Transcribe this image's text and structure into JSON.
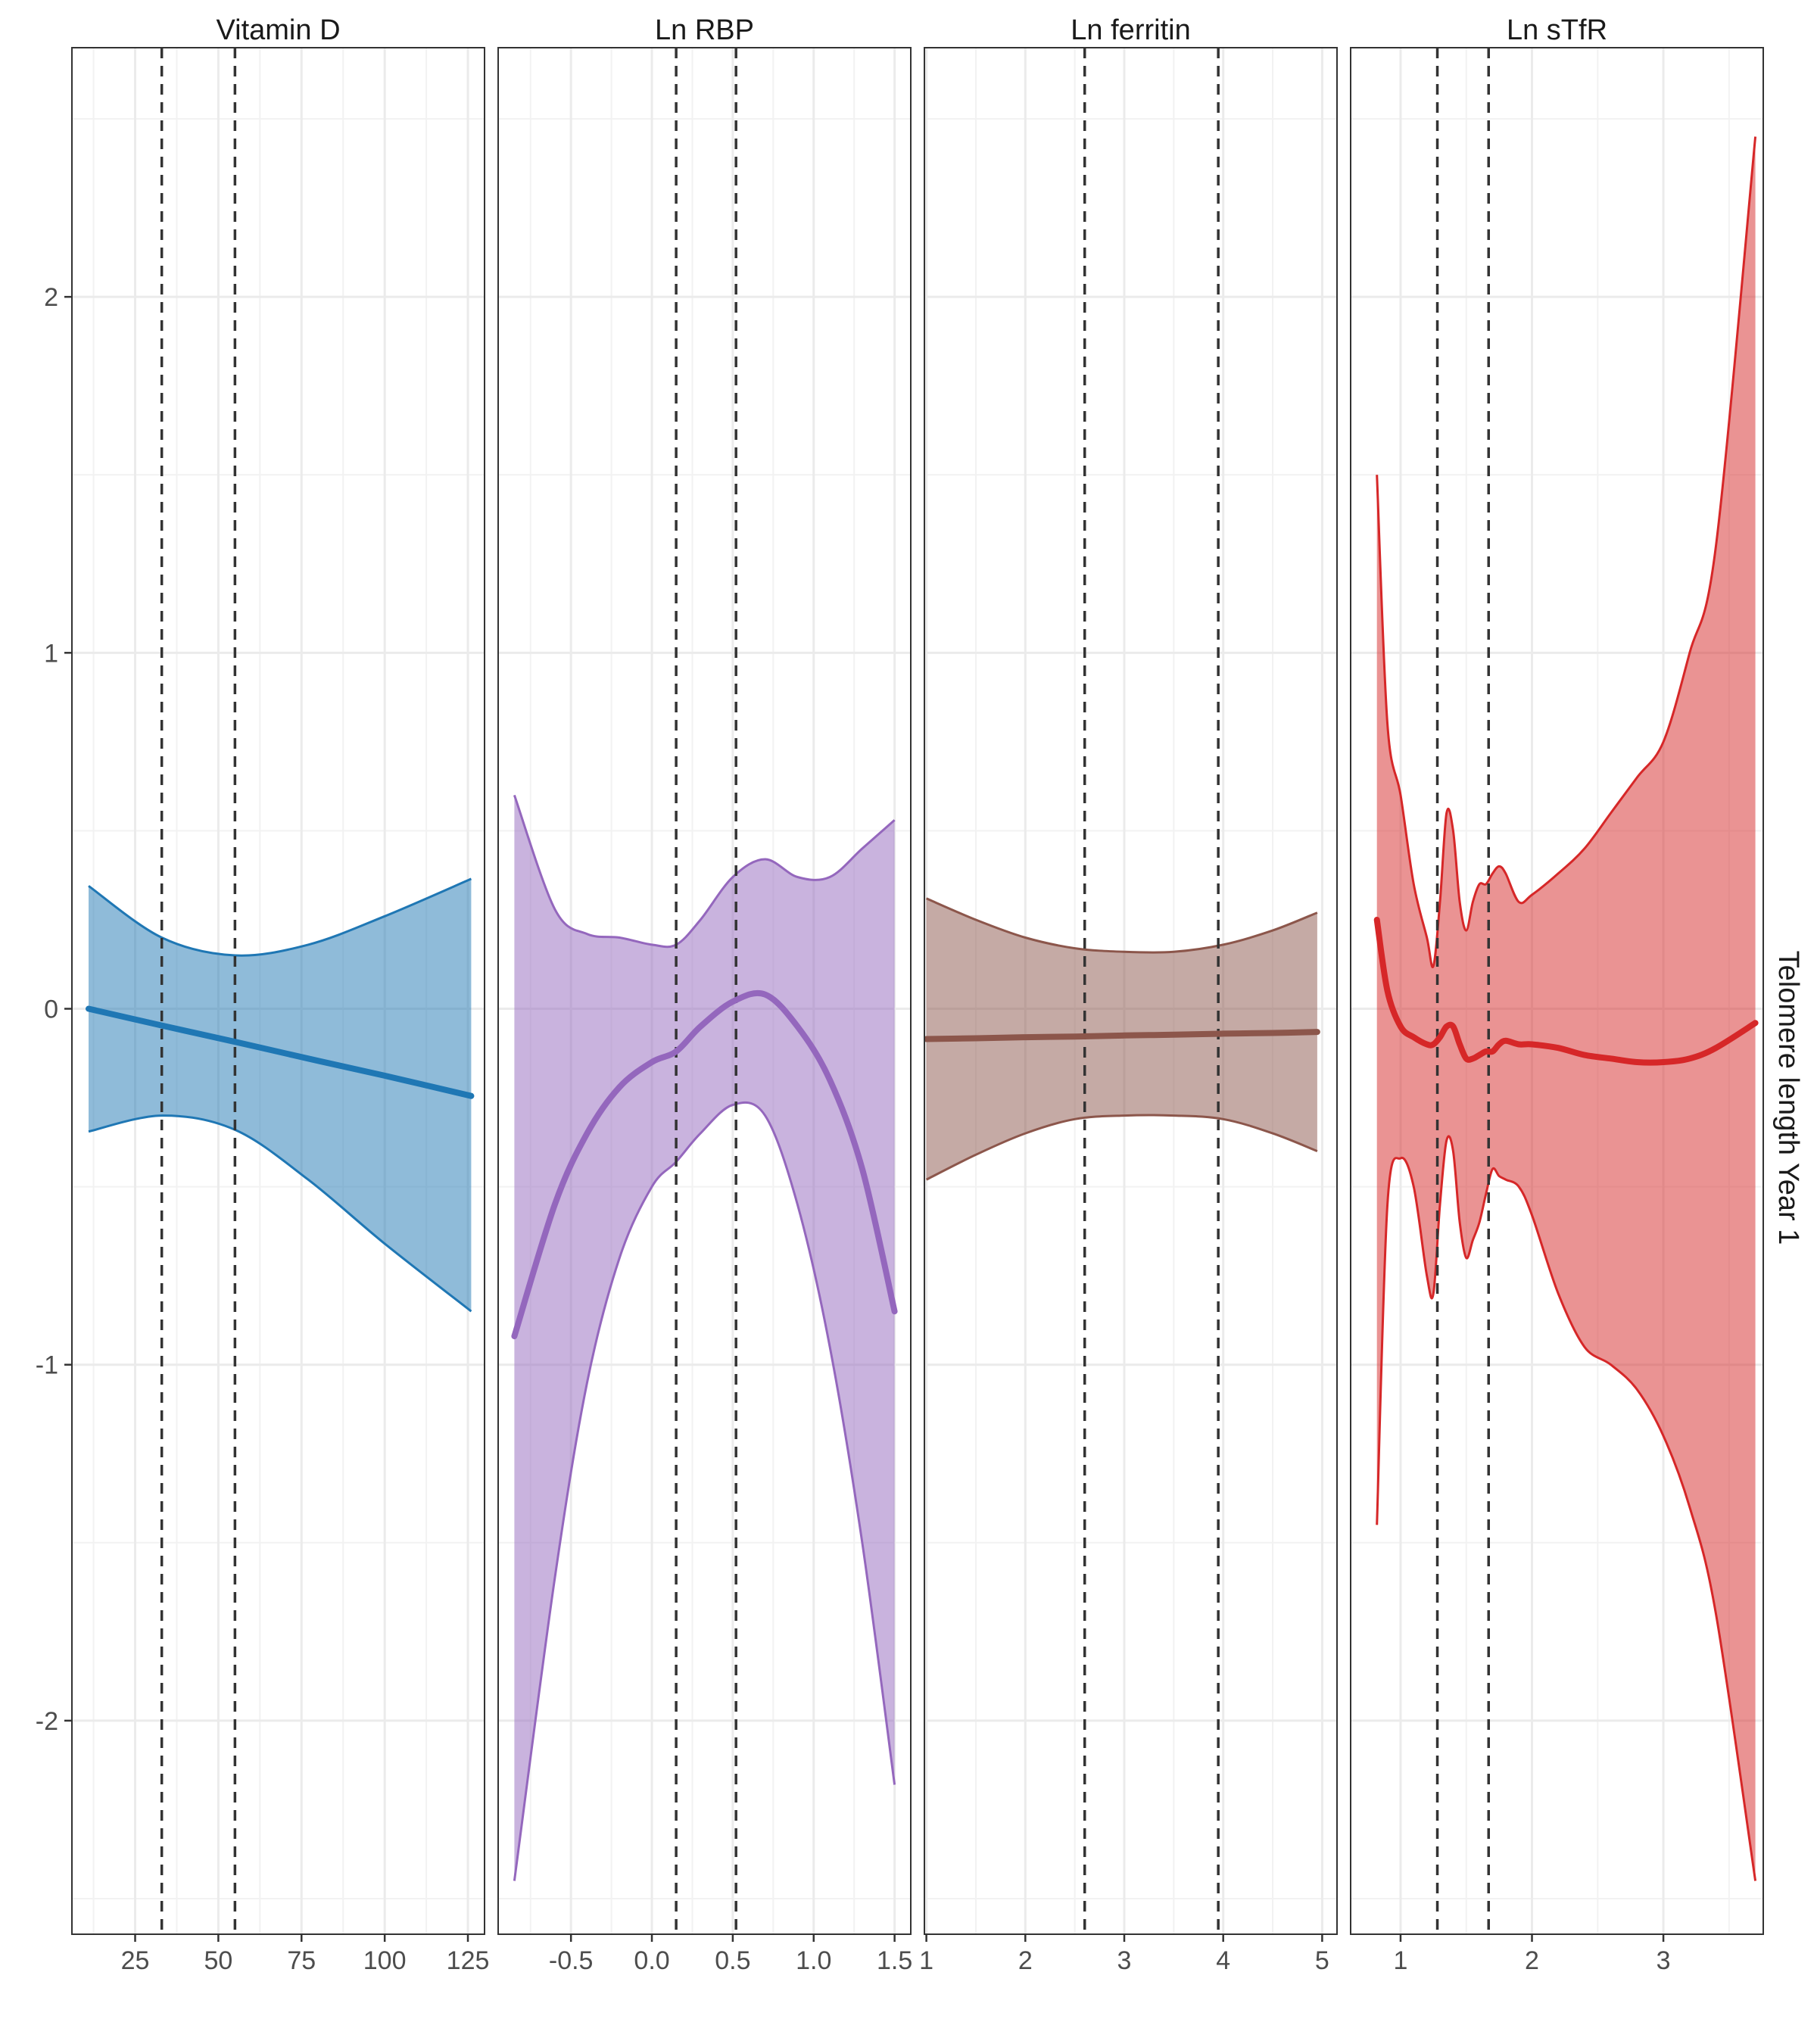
{
  "chart_data": {
    "type": "line",
    "facet_strip_label": "Telomere length Year 1",
    "y_ticks": [
      -2,
      -1,
      0,
      1,
      2
    ],
    "y_tick_labels": [
      "-2",
      "-1",
      "0",
      "1",
      "2"
    ],
    "ylim": [
      -2.6,
      2.7
    ],
    "grid": true,
    "panels": [
      {
        "title": "Vitamin D",
        "color": "#1f77b4",
        "fill": "#1f77b4",
        "xlim": [
          6,
          130
        ],
        "x_ticks": [
          25,
          50,
          75,
          100,
          125
        ],
        "x_tick_labels": [
          "25",
          "50",
          "75",
          "100",
          "125"
        ],
        "vlines": [
          33,
          55
        ],
        "series": {
          "x": [
            11,
            33,
            55,
            77,
            100,
            126
          ],
          "y": [
            0.0,
            -0.047,
            -0.093,
            -0.14,
            -0.188,
            -0.245
          ],
          "lower": [
            -0.345,
            -0.3,
            -0.34,
            -0.48,
            -0.66,
            -0.85
          ],
          "upper": [
            0.345,
            0.2,
            0.15,
            0.18,
            0.26,
            0.365
          ]
        }
      },
      {
        "title": "Ln RBP",
        "color": "#9467bd",
        "fill": "#9467bd",
        "xlim": [
          -0.95,
          1.6
        ],
        "x_ticks": [
          -0.5,
          0.0,
          0.5,
          1.0,
          1.5
        ],
        "x_tick_labels": [
          "-0.5",
          "0.0",
          "0.5",
          "1.0",
          "1.5"
        ],
        "vlines": [
          0.15,
          0.52
        ],
        "series": {
          "x": [
            -0.85,
            -0.6,
            -0.4,
            -0.2,
            0.0,
            0.15,
            0.3,
            0.5,
            0.7,
            0.9,
            1.1,
            1.3,
            1.5
          ],
          "y": [
            -0.92,
            -0.55,
            -0.35,
            -0.22,
            -0.15,
            -0.12,
            -0.05,
            0.02,
            0.04,
            -0.05,
            -0.2,
            -0.45,
            -0.85
          ],
          "lower": [
            -2.45,
            -1.6,
            -1.05,
            -0.7,
            -0.5,
            -0.43,
            -0.35,
            -0.27,
            -0.3,
            -0.55,
            -0.95,
            -1.5,
            -2.18
          ],
          "upper": [
            0.6,
            0.28,
            0.21,
            0.2,
            0.18,
            0.18,
            0.25,
            0.37,
            0.42,
            0.37,
            0.37,
            0.45,
            0.53
          ]
        }
      },
      {
        "title": "Ln ferritin",
        "color": "#8c564b",
        "fill": "#8c564b",
        "xlim": [
          0.98,
          5.15
        ],
        "x_ticks": [
          1,
          2,
          3,
          4,
          5
        ],
        "x_tick_labels": [
          "1",
          "2",
          "3",
          "4",
          "5"
        ],
        "vlines": [
          2.6,
          3.95
        ],
        "series": {
          "x": [
            1.0,
            1.5,
            2.0,
            2.5,
            3.0,
            3.5,
            4.0,
            4.5,
            4.95
          ],
          "y": [
            -0.085,
            -0.083,
            -0.08,
            -0.078,
            -0.075,
            -0.073,
            -0.07,
            -0.068,
            -0.065
          ],
          "lower": [
            -0.48,
            -0.41,
            -0.35,
            -0.31,
            -0.3,
            -0.3,
            -0.31,
            -0.35,
            -0.4
          ],
          "upper": [
            0.31,
            0.25,
            0.2,
            0.17,
            0.16,
            0.16,
            0.18,
            0.22,
            0.27
          ]
        }
      },
      {
        "title": "Ln sTfR",
        "color": "#d62728",
        "fill": "#d62728",
        "xlim": [
          0.62,
          3.76
        ],
        "x_ticks": [
          1,
          2,
          3
        ],
        "x_tick_labels": [
          "1",
          "2",
          "3"
        ],
        "vlines": [
          1.28,
          1.67
        ],
        "series": {
          "x": [
            0.82,
            0.9,
            1.0,
            1.1,
            1.2,
            1.25,
            1.3,
            1.35,
            1.4,
            1.45,
            1.5,
            1.55,
            1.6,
            1.65,
            1.7,
            1.75,
            1.8,
            1.9,
            2.0,
            2.2,
            2.4,
            2.6,
            2.8,
            3.0,
            3.2,
            3.4,
            3.7
          ],
          "y": [
            0.25,
            0.05,
            -0.05,
            -0.08,
            -0.1,
            -0.1,
            -0.08,
            -0.05,
            -0.05,
            -0.1,
            -0.14,
            -0.14,
            -0.13,
            -0.12,
            -0.12,
            -0.1,
            -0.09,
            -0.1,
            -0.1,
            -0.11,
            -0.13,
            -0.14,
            -0.15,
            -0.15,
            -0.14,
            -0.11,
            -0.04
          ],
          "lower": [
            -1.45,
            -0.55,
            -0.42,
            -0.5,
            -0.75,
            -0.8,
            -0.55,
            -0.37,
            -0.4,
            -0.6,
            -0.7,
            -0.65,
            -0.6,
            -0.52,
            -0.45,
            -0.47,
            -0.48,
            -0.5,
            -0.58,
            -0.8,
            -0.95,
            -1.0,
            -1.07,
            -1.2,
            -1.4,
            -1.7,
            -2.45
          ],
          "upper": [
            1.5,
            0.8,
            0.6,
            0.35,
            0.2,
            0.12,
            0.3,
            0.55,
            0.5,
            0.3,
            0.22,
            0.3,
            0.35,
            0.35,
            0.38,
            0.4,
            0.38,
            0.3,
            0.32,
            0.38,
            0.45,
            0.55,
            0.65,
            0.75,
            1.0,
            1.3,
            2.45
          ]
        }
      }
    ]
  }
}
